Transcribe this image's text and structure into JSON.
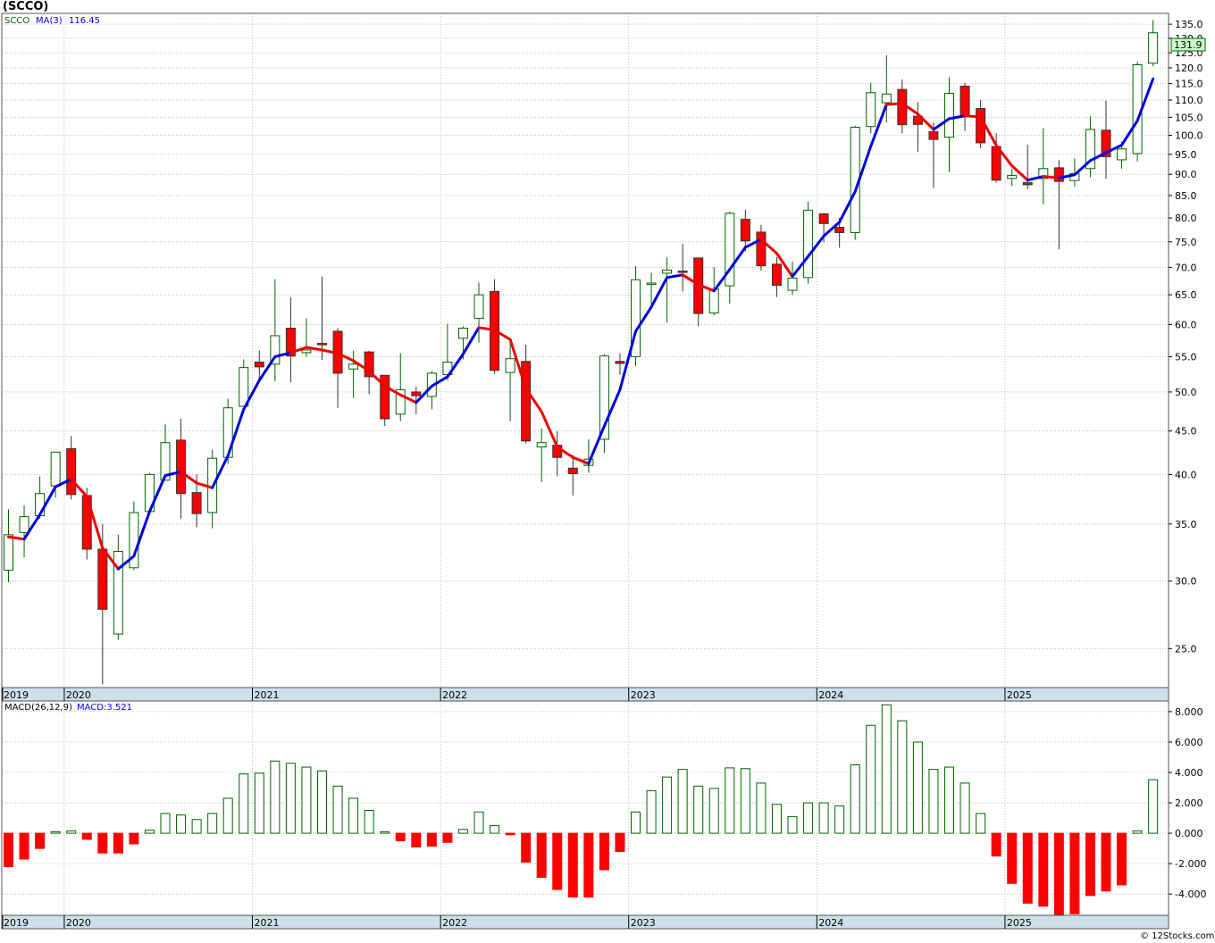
{
  "title": "(SCCO)",
  "legend": {
    "symbol": "SCCO",
    "ma_label": "MA(3)",
    "ma_value": "116.45",
    "macd_label": "MACD(26,12,9)",
    "macd_value_label": "MACD:3.521"
  },
  "last_price_label": "131.9",
  "credit": "© 12Stocks.com",
  "colors": {
    "up": "#006400",
    "down": "#ff0000",
    "ma_up": "#0000dd",
    "ma_down": "#ee0000",
    "axis_band": "#cce0ea",
    "grid": "#999999",
    "last_price_bg": "#c8ffc8"
  },
  "chart_data": [
    {
      "type": "candlestick",
      "title": "(SCCO)",
      "scale": "log",
      "ylim": [
        22.5,
        139
      ],
      "y_ticks": [
        "25.0",
        "30.0",
        "35.0",
        "40.0",
        "45.0",
        "50.0",
        "55.0",
        "60.0",
        "65.0",
        "70.0",
        "75.0",
        "80.0",
        "85.0",
        "90.0",
        "95.0",
        "100.0",
        "105.0",
        "110.0",
        "115.0",
        "120.0",
        "125.0",
        "130.0",
        "135.0"
      ],
      "x_labels": [
        {
          "label": "2019",
          "index": -1
        },
        {
          "label": "2020",
          "index": 3
        },
        {
          "label": "2021",
          "index": 15
        },
        {
          "label": "2022",
          "index": 27
        },
        {
          "label": "2023",
          "index": 39
        },
        {
          "label": "2024",
          "index": 51
        },
        {
          "label": "2025",
          "index": 63
        }
      ],
      "candles": [
        [
          30.9,
          36.4,
          29.9,
          34.0
        ],
        [
          34.2,
          36.8,
          32.0,
          35.7
        ],
        [
          35.8,
          39.8,
          35.5,
          38.0
        ],
        [
          38.8,
          42.5,
          37.6,
          42.5
        ],
        [
          42.9,
          44.4,
          37.4,
          37.9
        ],
        [
          37.8,
          38.6,
          31.8,
          32.7
        ],
        [
          32.7,
          35.0,
          22.7,
          27.8
        ],
        [
          26.0,
          34.0,
          25.6,
          32.5
        ],
        [
          31.1,
          37.2,
          30.9,
          36.1
        ],
        [
          36.2,
          40.2,
          35.9,
          40.0
        ],
        [
          39.4,
          45.8,
          39.4,
          43.6
        ],
        [
          43.9,
          46.5,
          35.5,
          38.0
        ],
        [
          38.1,
          40.0,
          34.7,
          36.0
        ],
        [
          36.1,
          42.8,
          34.6,
          41.8
        ],
        [
          41.9,
          49.1,
          41.2,
          47.9
        ],
        [
          48.1,
          54.6,
          48.0,
          53.4
        ],
        [
          54.2,
          55.9,
          51.4,
          53.5
        ],
        [
          53.9,
          67.8,
          51.5,
          58.2
        ],
        [
          59.4,
          64.6,
          51.3,
          55.1
        ],
        [
          55.6,
          61.0,
          55.0,
          56.0
        ],
        [
          57.0,
          68.3,
          54.5,
          56.8
        ],
        [
          58.9,
          59.4,
          47.9,
          52.6
        ],
        [
          53.2,
          55.9,
          49.2,
          53.9
        ],
        [
          55.7,
          55.9,
          49.7,
          52.1
        ],
        [
          52.3,
          52.3,
          45.6,
          46.5
        ],
        [
          47.1,
          55.5,
          46.2,
          50.3
        ],
        [
          50.0,
          50.7,
          47.1,
          49.5
        ],
        [
          49.4,
          52.9,
          47.7,
          52.6
        ],
        [
          52.4,
          60.1,
          51.6,
          54.2
        ],
        [
          57.8,
          59.7,
          54.6,
          59.4
        ],
        [
          61.0,
          67.2,
          57.1,
          65.0
        ],
        [
          65.6,
          67.8,
          52.5,
          53.0
        ],
        [
          52.7,
          57.1,
          46.2,
          54.7
        ],
        [
          54.3,
          56.8,
          43.5,
          43.8
        ],
        [
          43.1,
          45.3,
          39.2,
          43.6
        ],
        [
          43.3,
          45.0,
          39.8,
          41.9
        ],
        [
          40.7,
          42.2,
          37.8,
          40.1
        ],
        [
          41.0,
          44.0,
          40.2,
          41.7
        ],
        [
          44.0,
          55.4,
          42.4,
          55.1
        ],
        [
          54.3,
          55.5,
          52.4,
          54.0
        ],
        [
          55.0,
          70.2,
          53.6,
          67.7
        ],
        [
          67.0,
          69.0,
          62.6,
          67.1
        ],
        [
          68.9,
          71.9,
          60.3,
          69.5
        ],
        [
          69.3,
          74.6,
          65.6,
          69.2
        ],
        [
          71.8,
          71.8,
          59.7,
          61.8
        ],
        [
          61.9,
          70.0,
          61.5,
          66.0
        ],
        [
          66.6,
          81.4,
          63.5,
          81.0
        ],
        [
          79.7,
          81.8,
          73.1,
          75.2
        ],
        [
          77.0,
          78.5,
          69.4,
          70.3
        ],
        [
          70.6,
          72.0,
          64.6,
          66.7
        ],
        [
          65.8,
          71.1,
          65.0,
          68.0
        ],
        [
          68.1,
          83.6,
          67.0,
          81.7
        ],
        [
          80.9,
          81.1,
          74.9,
          78.8
        ],
        [
          78.0,
          80.0,
          73.8,
          76.9
        ],
        [
          76.9,
          102.6,
          75.4,
          102.2
        ],
        [
          102.4,
          115.3,
          100.5,
          112.2
        ],
        [
          109.2,
          124.2,
          103.5,
          111.8
        ],
        [
          113.2,
          116.3,
          100.5,
          102.9
        ],
        [
          105.3,
          109.4,
          95.6,
          103.0
        ],
        [
          101.0,
          103.5,
          86.8,
          98.9
        ],
        [
          99.5,
          117.0,
          90.5,
          112.0
        ],
        [
          114.2,
          115.2,
          101.2,
          105.3
        ],
        [
          107.5,
          110.0,
          96.6,
          98.0
        ],
        [
          97.0,
          100.5,
          88.0,
          88.6
        ],
        [
          89.0,
          91.4,
          87.2,
          89.7
        ],
        [
          88.0,
          97.5,
          86.5,
          87.5
        ],
        [
          89.0,
          102.0,
          83.0,
          91.4
        ],
        [
          91.6,
          93.5,
          73.5,
          88.3
        ],
        [
          88.5,
          94.0,
          87.1,
          90.2
        ],
        [
          91.4,
          105.3,
          89.3,
          101.6
        ],
        [
          101.4,
          109.8,
          88.9,
          94.4
        ],
        [
          93.6,
          98.3,
          91.4,
          96.4
        ],
        [
          95.2,
          122.0,
          93.2,
          121.0
        ],
        [
          121.5,
          136.5,
          120.5,
          131.9
        ]
      ],
      "ma3": [
        33.8,
        33.6,
        35.9,
        38.7,
        39.5,
        37.7,
        32.8,
        31.0,
        32.1,
        36.2,
        39.9,
        40.3,
        39.1,
        38.6,
        42.1,
        47.7,
        51.6,
        55.0,
        55.6,
        56.4,
        56.0,
        55.5,
        54.4,
        52.9,
        50.8,
        49.6,
        48.6,
        50.8,
        52.1,
        55.4,
        59.5,
        59.1,
        57.6,
        50.5,
        47.4,
        43.1,
        41.9,
        41.2,
        45.6,
        50.3,
        58.9,
        62.9,
        68.1,
        68.6,
        66.8,
        65.7,
        69.6,
        73.9,
        75.5,
        72.7,
        68.3,
        72.1,
        76.2,
        79.1,
        85.9,
        97.1,
        108.7,
        109.0,
        105.9,
        101.6,
        104.6,
        105.4,
        105.1,
        97.3,
        92.1,
        88.6,
        89.5,
        89.1,
        89.9,
        93.4,
        95.4,
        97.4,
        104.0,
        116.45
      ],
      "ma3_color": [
        "d",
        "d",
        "u",
        "u",
        "u",
        "d",
        "d",
        "d",
        "u",
        "u",
        "u",
        "u",
        "d",
        "d",
        "u",
        "u",
        "u",
        "u",
        "u",
        "d",
        "d",
        "d",
        "d",
        "d",
        "d",
        "d",
        "d",
        "u",
        "u",
        "u",
        "u",
        "d",
        "d",
        "d",
        "d",
        "d",
        "d",
        "d",
        "u",
        "u",
        "u",
        "u",
        "u",
        "u",
        "d",
        "d",
        "u",
        "u",
        "u",
        "d",
        "d",
        "u",
        "u",
        "u",
        "u",
        "u",
        "u",
        "d",
        "d",
        "d",
        "u",
        "u",
        "d",
        "d",
        "d",
        "d",
        "u",
        "d",
        "u",
        "u",
        "u",
        "u",
        "u",
        "u"
      ],
      "volume_marker_note": ""
    },
    {
      "type": "bar",
      "title": "MACD(26,12,9)",
      "ylim": [
        -5.4,
        8.7
      ],
      "y_ticks": [
        "-4.000",
        "-2.000",
        "0.000",
        "2.000",
        "4.000",
        "6.000",
        "8.000"
      ],
      "y_tick_values": [
        -4,
        -2,
        0,
        2,
        4,
        6,
        8
      ],
      "values": [
        -2.2,
        -1.7,
        -1.0,
        0.1,
        0.15,
        -0.4,
        -1.3,
        -1.3,
        -0.7,
        0.2,
        1.3,
        1.2,
        0.9,
        1.3,
        2.3,
        3.9,
        3.95,
        4.75,
        4.6,
        4.35,
        4.1,
        3.1,
        2.3,
        1.5,
        0.1,
        -0.5,
        -0.9,
        -0.85,
        -0.6,
        0.25,
        1.4,
        0.5,
        -0.1,
        -1.9,
        -2.9,
        -3.7,
        -4.2,
        -4.2,
        -2.4,
        -1.2,
        1.4,
        2.8,
        3.7,
        4.2,
        3.1,
        2.95,
        4.3,
        4.25,
        3.3,
        1.9,
        1.1,
        2.0,
        2.0,
        1.8,
        4.5,
        7.1,
        8.45,
        7.4,
        6.0,
        4.2,
        4.35,
        3.3,
        1.3,
        -1.5,
        -3.3,
        -4.6,
        -4.8,
        -5.4,
        -5.3,
        -4.1,
        -3.8,
        -3.4,
        0.15,
        3.521
      ],
      "x_labels": [
        {
          "label": "2019",
          "index": -1
        },
        {
          "label": "2020",
          "index": 3
        },
        {
          "label": "2021",
          "index": 15
        },
        {
          "label": "2022",
          "index": 27
        },
        {
          "label": "2023",
          "index": 39
        },
        {
          "label": "2024",
          "index": 51
        },
        {
          "label": "2025",
          "index": 63
        }
      ]
    }
  ]
}
